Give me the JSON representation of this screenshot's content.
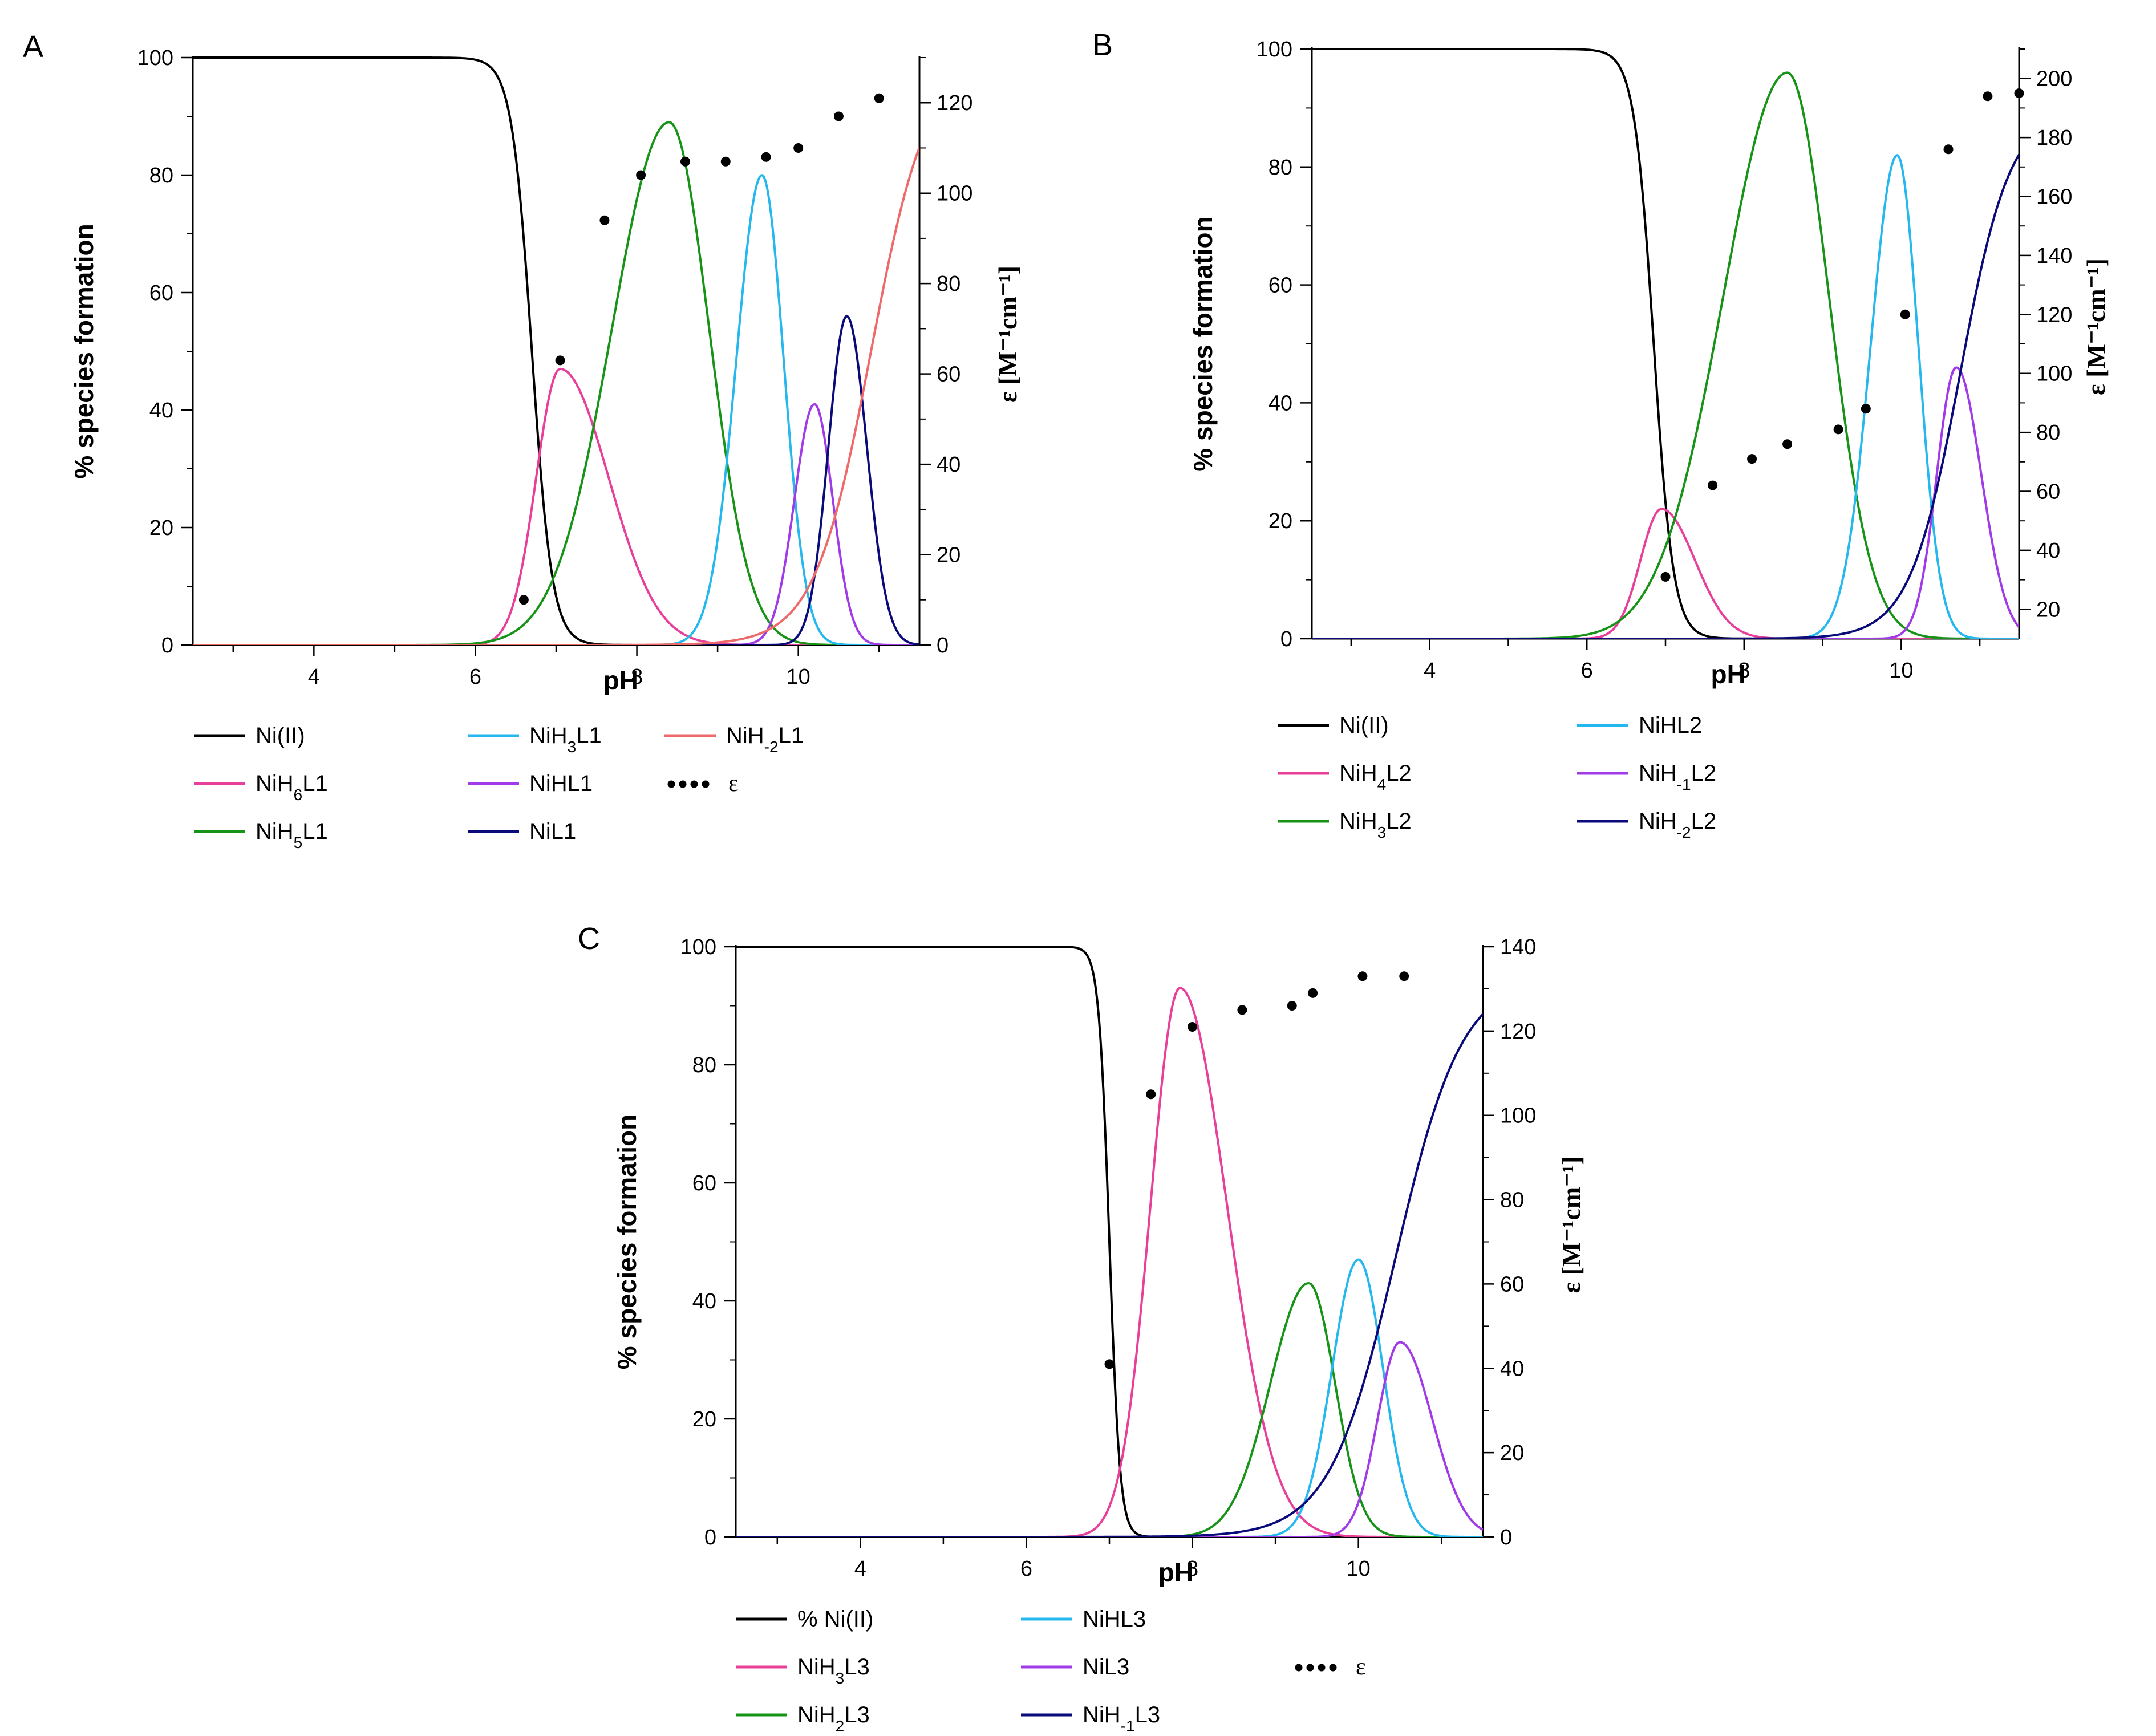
{
  "chart_data": [
    {
      "panel": "A",
      "type": "line",
      "xlabel": "pH",
      "ylabel": "% species formation",
      "y2label": "ε [M⁻¹cm⁻¹]",
      "xlim": [
        2.5,
        11.5
      ],
      "ylim": [
        0,
        100
      ],
      "y2lim": [
        0,
        130
      ],
      "xticks": [
        4,
        6,
        8,
        10
      ],
      "yticks": [
        0,
        20,
        40,
        60,
        80,
        100
      ],
      "y2ticks": [
        0,
        20,
        40,
        60,
        80,
        100,
        120
      ],
      "series": [
        {
          "name": "Ni(II)",
          "label": "Ni(II)",
          "color": "#000000",
          "shape": "sig",
          "params": {
            "center": 6.7,
            "width": 0.55
          }
        },
        {
          "name": "NiH6L1",
          "label": "NiH6L1",
          "color": "#e8409a",
          "shape": "asym",
          "params": {
            "peak": 7.05,
            "height": 47,
            "wl": 0.42,
            "wr": 0.85
          }
        },
        {
          "name": "NiH5L1",
          "label": "NiH5L1",
          "color": "#179417",
          "shape": "asym",
          "params": {
            "peak": 8.4,
            "height": 89,
            "wl": 1.0,
            "wr": 0.7
          }
        },
        {
          "name": "NiH3L1",
          "label": "NiH3L1",
          "color": "#25b8ee",
          "shape": "asym",
          "params": {
            "peak": 9.55,
            "height": 80,
            "wl": 0.45,
            "wr": 0.38
          }
        },
        {
          "name": "NiHL1",
          "label": "NiHL1",
          "color": "#a13be8",
          "shape": "asym",
          "params": {
            "peak": 10.2,
            "height": 41,
            "wl": 0.35,
            "wr": 0.32
          }
        },
        {
          "name": "NiL1",
          "label": "NiL1",
          "color": "#0a0a7a",
          "shape": "asym",
          "params": {
            "peak": 10.6,
            "height": 56,
            "wl": 0.32,
            "wr": 0.35
          }
        },
        {
          "name": "NiH-2L1",
          "label": "NiH-2L1",
          "color": "#ee6a6a",
          "shape": "rise",
          "params": {
            "center": 10.9,
            "width": 0.35,
            "height": 100
          }
        }
      ],
      "epsilon": {
        "name": "ε",
        "x": [
          6.6,
          7.05,
          7.6,
          8.05,
          8.6,
          9.1,
          9.6,
          10.0,
          10.5,
          11.0
        ],
        "y": [
          10,
          63,
          94,
          104,
          107,
          107,
          108,
          110,
          117,
          121
        ]
      },
      "legend": [
        [
          "Ni(II)",
          "NiH3L1",
          "NiH-2L1"
        ],
        [
          "NiH6L1",
          "NiHL1",
          "ε"
        ],
        [
          "NiH5L1",
          "NiL1"
        ]
      ]
    },
    {
      "panel": "B",
      "type": "line",
      "xlabel": "pH",
      "ylabel": "% species formation",
      "y2label": "ε [M⁻¹cm⁻¹]",
      "xlim": [
        2.5,
        11.5
      ],
      "ylim": [
        0,
        100
      ],
      "y2lim": [
        10,
        210
      ],
      "xticks": [
        4,
        6,
        8,
        10
      ],
      "yticks": [
        0,
        20,
        40,
        60,
        80,
        100
      ],
      "y2ticks": [
        20,
        40,
        60,
        80,
        100,
        120,
        140,
        160,
        180,
        200
      ],
      "series": [
        {
          "name": "Ni(II)",
          "label": "Ni(II)",
          "color": "#000000",
          "shape": "sig",
          "params": {
            "center": 6.85,
            "width": 0.55
          }
        },
        {
          "name": "NiH4L2",
          "label": "NiH4L2",
          "color": "#e8409a",
          "shape": "asym",
          "params": {
            "peak": 6.95,
            "height": 22,
            "wl": 0.38,
            "wr": 0.6
          }
        },
        {
          "name": "NiH3L2",
          "label": "NiH3L2",
          "color": "#179417",
          "shape": "asym",
          "params": {
            "peak": 8.55,
            "height": 96,
            "wl": 1.15,
            "wr": 0.75
          }
        },
        {
          "name": "NiHL2",
          "label": "NiHL2",
          "color": "#25b8ee",
          "shape": "asym",
          "params": {
            "peak": 9.95,
            "height": 82,
            "wl": 0.48,
            "wr": 0.38
          }
        },
        {
          "name": "NiH-1L2",
          "label": "NiH-1L2",
          "color": "#a13be8",
          "shape": "asym",
          "params": {
            "peak": 10.7,
            "height": 46,
            "wl": 0.35,
            "wr": 0.45
          }
        },
        {
          "name": "NiH-2L2",
          "label": "NiH-2L2",
          "color": "#0a0a7a",
          "shape": "rise",
          "params": {
            "center": 10.75,
            "width": 0.32,
            "height": 90
          }
        }
      ],
      "epsilon": {
        "name": "ε",
        "x": [
          7.0,
          7.6,
          8.1,
          8.55,
          9.2,
          9.55,
          10.05,
          10.6,
          11.1,
          11.5
        ],
        "y": [
          31,
          62,
          71,
          76,
          81,
          88,
          120,
          176,
          194,
          195
        ]
      },
      "legend": [
        [
          "Ni(II)",
          "NiHL2"
        ],
        [
          "NiH4L2",
          "NiH-1L2"
        ],
        [
          "NiH3L2",
          "NiH-2L2"
        ]
      ]
    },
    {
      "panel": "C",
      "type": "line",
      "xlabel": "pH",
      "ylabel": "% species formation",
      "y2label": "ε [M⁻¹cm⁻¹]",
      "xlim": [
        2.5,
        11.5
      ],
      "ylim": [
        0,
        100
      ],
      "y2lim": [
        0,
        140
      ],
      "xticks": [
        4,
        6,
        8,
        10
      ],
      "yticks": [
        0,
        20,
        40,
        60,
        80,
        100
      ],
      "y2ticks": [
        0,
        20,
        40,
        60,
        80,
        100,
        120,
        140
      ],
      "series": [
        {
          "name": "% Ni(II)",
          "label": "% Ni(II)",
          "color": "#000000",
          "shape": "sig",
          "params": {
            "center": 7.0,
            "width": 0.28
          }
        },
        {
          "name": "NiH3L3",
          "label": "NiH3L3",
          "color": "#e8409a",
          "shape": "asym",
          "params": {
            "peak": 7.85,
            "height": 93,
            "wl": 0.5,
            "wr": 0.8
          }
        },
        {
          "name": "NiH2L3",
          "label": "NiH2L3",
          "color": "#179417",
          "shape": "asym",
          "params": {
            "peak": 9.4,
            "height": 43,
            "wl": 0.65,
            "wr": 0.45
          }
        },
        {
          "name": "NiHL3",
          "label": "NiHL3",
          "color": "#25b8ee",
          "shape": "asym",
          "params": {
            "peak": 10.0,
            "height": 47,
            "wl": 0.45,
            "wr": 0.42
          }
        },
        {
          "name": "NiL3",
          "label": "NiL3",
          "color": "#a13be8",
          "shape": "asym",
          "params": {
            "peak": 10.5,
            "height": 33,
            "wl": 0.38,
            "wr": 0.55
          }
        },
        {
          "name": "NiH-1L3",
          "label": "NiH-1L3",
          "color": "#0a0a7a",
          "shape": "rise",
          "params": {
            "center": 10.45,
            "width": 0.4,
            "height": 95
          }
        }
      ],
      "epsilon": {
        "name": "ε",
        "x": [
          7.0,
          7.5,
          8.0,
          8.6,
          9.2,
          9.45,
          10.05,
          10.55
        ],
        "y": [
          41,
          105,
          121,
          125,
          126,
          129,
          133,
          133
        ]
      },
      "legend": [
        [
          "% Ni(II)",
          "NiHL3"
        ],
        [
          "NiH3L3",
          "NiL3",
          "ε"
        ],
        [
          "NiH2L3",
          "NiH-1L3"
        ]
      ]
    }
  ]
}
